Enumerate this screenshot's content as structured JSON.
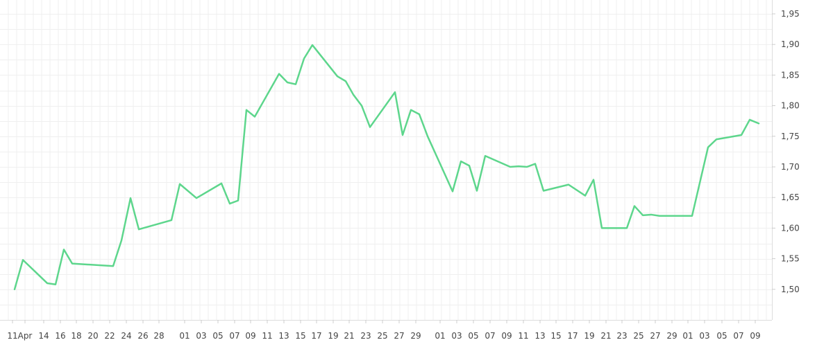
{
  "chart_data": {
    "type": "line",
    "title": "",
    "xlabel": "",
    "ylabel": "",
    "ylim": [
      1.45,
      1.95
    ],
    "y_ticks": [
      "1,50",
      "1,55",
      "1,60",
      "1,65",
      "1,70",
      "1,75",
      "1,80",
      "1,85",
      "1,90",
      "1,95"
    ],
    "y_tick_values": [
      1.5,
      1.55,
      1.6,
      1.65,
      1.7,
      1.75,
      1.8,
      1.85,
      1.9,
      1.95
    ],
    "x_ticks": [
      "11",
      "Apr",
      "14",
      "16",
      "18",
      "20",
      "22",
      "24",
      "26",
      "28",
      "01",
      "03",
      "05",
      "07",
      "09",
      "11",
      "13",
      "15",
      "17",
      "19",
      "21",
      "23",
      "25",
      "27",
      "29",
      "01",
      "03",
      "05",
      "07",
      "09",
      "11",
      "13",
      "15",
      "17",
      "19",
      "21",
      "23",
      "25",
      "27",
      "29",
      "01",
      "03",
      "05",
      "07",
      "09"
    ],
    "grid": true,
    "line_color": "#5dd68c",
    "series": [
      {
        "values": [
          [
            "11",
            1.5
          ],
          [
            "Apr",
            1.548
          ],
          [
            "14",
            1.51
          ],
          [
            "16",
            1.508
          ],
          [
            "16",
            1.565
          ],
          [
            "18",
            1.542
          ],
          [
            "22",
            1.538
          ],
          [
            "22",
            1.58
          ],
          [
            "24",
            1.649
          ],
          [
            "26",
            1.598
          ],
          [
            "28",
            1.613
          ],
          [
            "01",
            1.672
          ],
          [
            "03",
            1.649
          ],
          [
            "05",
            1.673
          ],
          [
            "07",
            1.64
          ],
          [
            "07",
            1.645
          ],
          [
            "09",
            1.793
          ],
          [
            "09",
            1.782
          ],
          [
            "13",
            1.852
          ],
          [
            "13",
            1.838
          ],
          [
            "15",
            1.835
          ],
          [
            "15",
            1.877
          ],
          [
            "17",
            1.899
          ],
          [
            "19",
            1.848
          ],
          [
            "21",
            1.84
          ],
          [
            "21",
            1.818
          ],
          [
            "23",
            1.8
          ],
          [
            "23",
            1.765
          ],
          [
            "27",
            1.822
          ],
          [
            "27",
            1.752
          ],
          [
            "29",
            1.793
          ],
          [
            "29",
            1.786
          ],
          [
            "29",
            1.75
          ],
          [
            "01",
            1.66
          ],
          [
            "03",
            1.709
          ],
          [
            "05",
            1.702
          ],
          [
            "05",
            1.661
          ],
          [
            "07",
            1.718
          ],
          [
            "09",
            1.7
          ],
          [
            "11",
            1.701
          ],
          [
            "11",
            1.7
          ],
          [
            "13",
            1.705
          ],
          [
            "13",
            1.661
          ],
          [
            "17",
            1.671
          ],
          [
            "19",
            1.653
          ],
          [
            "19",
            1.679
          ],
          [
            "21",
            1.6
          ],
          [
            "23",
            1.6
          ],
          [
            "25",
            1.636
          ],
          [
            "25",
            1.621
          ],
          [
            "27",
            1.622
          ],
          [
            "27",
            1.62
          ],
          [
            "01",
            1.62
          ],
          [
            "03",
            1.732
          ],
          [
            "05",
            1.745
          ],
          [
            "07",
            1.752
          ],
          [
            "09",
            1.777
          ],
          [
            "09",
            1.771
          ]
        ]
      }
    ]
  }
}
